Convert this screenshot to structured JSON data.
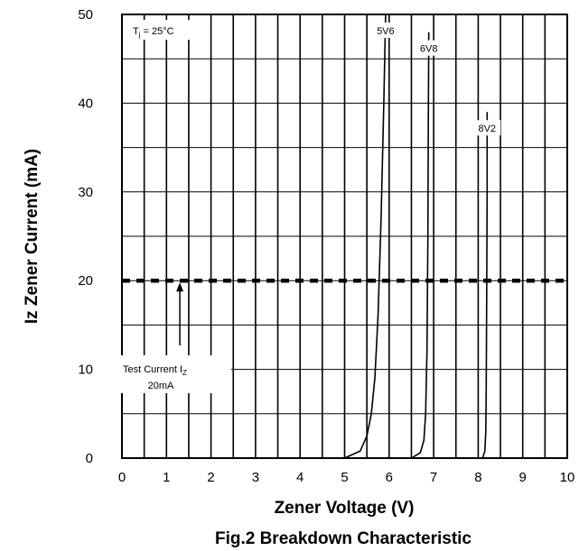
{
  "chart_data": {
    "type": "line",
    "title": "Fig.2 Breakdown Characteristic",
    "xlabel": "Zener Voltage (V)",
    "ylabel": "Iz Zener Current (mA)",
    "xlim": [
      0,
      10
    ],
    "ylim": [
      0,
      50
    ],
    "x_ticks": [
      "0",
      "1",
      "2",
      "3",
      "4",
      "5",
      "6",
      "7",
      "8",
      "9",
      "10"
    ],
    "y_ticks": [
      "0",
      "10",
      "20",
      "30",
      "40",
      "50"
    ],
    "grid": true,
    "x_minor_step": 0.5,
    "y_minor_step": 5,
    "conditions": {
      "main": "T",
      "sub": "j",
      "rest": " = 25°C"
    },
    "series": [
      {
        "name": "5V6",
        "x": [
          5.0,
          5.35,
          5.5,
          5.6,
          5.68,
          5.75,
          5.82,
          5.88,
          5.92
        ],
        "y": [
          0,
          0.8,
          2.5,
          5,
          9,
          16,
          27,
          40,
          50
        ]
      },
      {
        "name": "6V8",
        "x": [
          6.5,
          6.7,
          6.78,
          6.82,
          6.85,
          6.87,
          6.88,
          6.89
        ],
        "y": [
          0,
          0.6,
          2,
          5,
          12,
          25,
          38,
          48
        ]
      },
      {
        "name": "8V2",
        "x": [
          8.1,
          8.15,
          8.17,
          8.18,
          8.19,
          8.2,
          8.2
        ],
        "y": [
          0,
          0.8,
          3,
          8,
          18,
          30,
          39
        ]
      }
    ],
    "reference_line": {
      "y": 20,
      "style": "dashed"
    },
    "annotation": {
      "x": 1.3,
      "text_main": "Test Current I",
      "text_sub": "Z",
      "value": "20mA"
    }
  }
}
